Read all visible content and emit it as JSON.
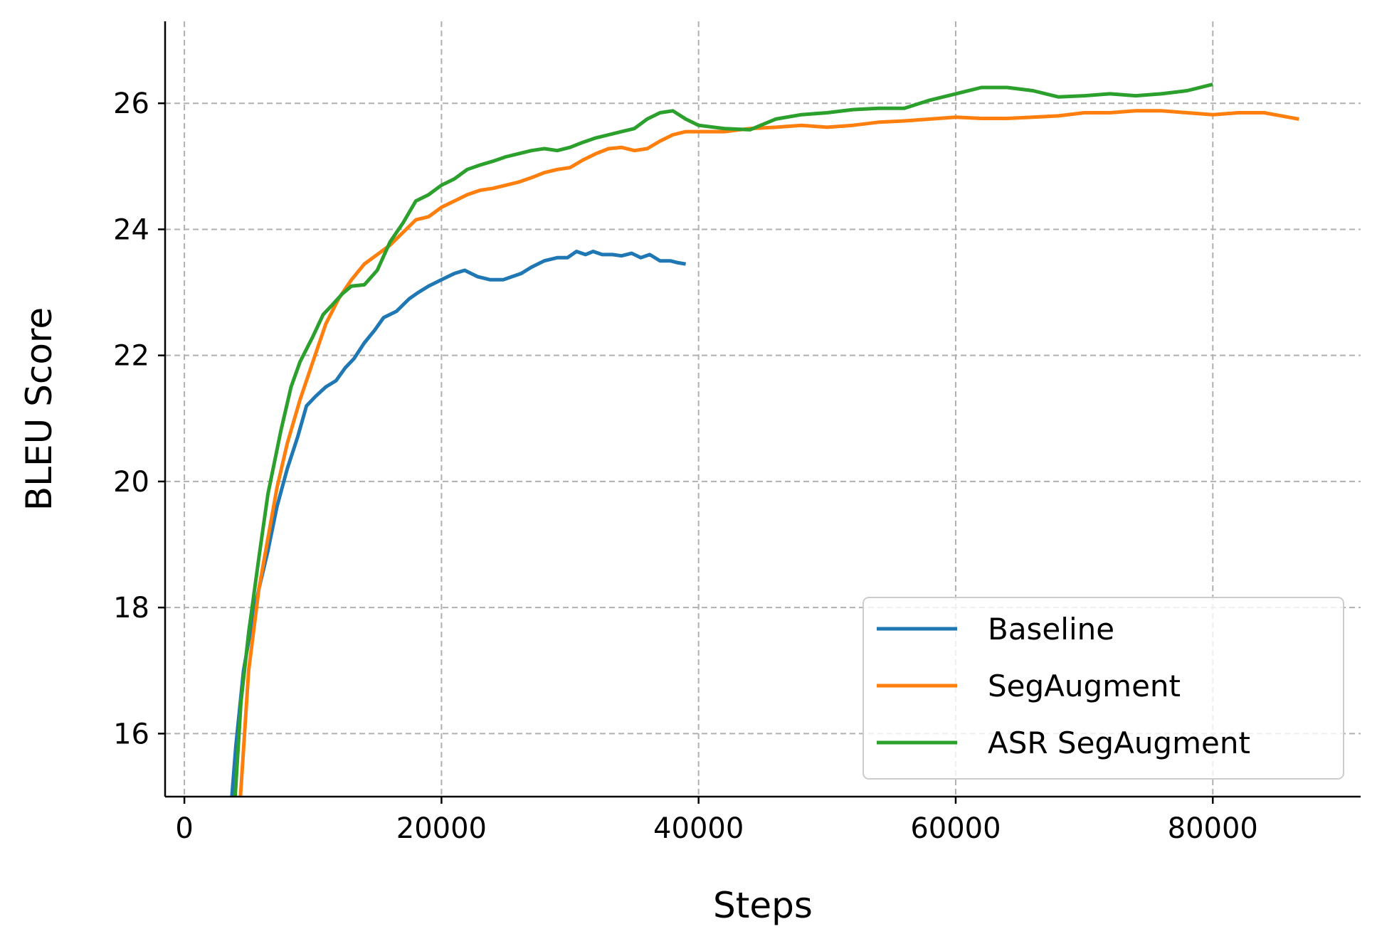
{
  "chart_data": {
    "type": "line",
    "title": "",
    "xlabel": "Steps",
    "ylabel": "BLEU Score",
    "xlim": [
      -1500,
      91500
    ],
    "ylim": [
      15,
      27.3
    ],
    "xticks": [
      0,
      20000,
      40000,
      60000,
      80000
    ],
    "yticks": [
      16,
      18,
      20,
      22,
      24,
      26
    ],
    "grid": true,
    "legend": "lower-right",
    "series": [
      {
        "name": "Baseline",
        "color": "#1f77b4",
        "x": [
          3500,
          4000,
          4600,
          5200,
          5800,
          6500,
          7200,
          8000,
          8800,
          9500,
          10200,
          11000,
          11800,
          12500,
          13200,
          14000,
          14800,
          15500,
          16500,
          17500,
          18200,
          19000,
          20000,
          21000,
          21800,
          22800,
          23800,
          24800,
          25500,
          26200,
          27000,
          28000,
          29000,
          29800,
          30500,
          31200,
          31800,
          32500,
          33300,
          34000,
          34800,
          35500,
          36200,
          37000,
          37800,
          38400,
          39000
        ],
        "y": [
          14.5,
          15.8,
          17.0,
          17.7,
          18.3,
          18.9,
          19.6,
          20.2,
          20.7,
          21.2,
          21.35,
          21.5,
          21.6,
          21.8,
          21.95,
          22.2,
          22.4,
          22.6,
          22.7,
          22.9,
          23.0,
          23.1,
          23.2,
          23.3,
          23.35,
          23.25,
          23.2,
          23.2,
          23.25,
          23.3,
          23.4,
          23.5,
          23.55,
          23.55,
          23.65,
          23.6,
          23.65,
          23.6,
          23.6,
          23.58,
          23.62,
          23.55,
          23.6,
          23.5,
          23.5,
          23.47,
          23.45
        ]
      },
      {
        "name": "SegAugment",
        "color": "#ff7f0e",
        "x": [
          4200,
          5000,
          5800,
          6500,
          7200,
          8000,
          9000,
          10000,
          11000,
          12000,
          13000,
          14000,
          15000,
          16000,
          17000,
          18000,
          19000,
          20000,
          21000,
          22000,
          23000,
          24000,
          25000,
          26000,
          27000,
          28000,
          29000,
          30000,
          31000,
          32000,
          33000,
          34000,
          35000,
          36000,
          37000,
          38000,
          39000,
          40000,
          42000,
          44000,
          46000,
          48000,
          50000,
          52000,
          54000,
          56000,
          58000,
          60000,
          62000,
          64000,
          66000,
          68000,
          70000,
          72000,
          74000,
          76000,
          78000,
          80000,
          82000,
          84000,
          86700
        ],
        "y": [
          14.5,
          17.0,
          18.3,
          19.1,
          19.9,
          20.6,
          21.3,
          21.9,
          22.5,
          22.9,
          23.2,
          23.45,
          23.6,
          23.75,
          23.95,
          24.15,
          24.2,
          24.35,
          24.45,
          24.55,
          24.62,
          24.65,
          24.7,
          24.75,
          24.82,
          24.9,
          24.95,
          24.98,
          25.1,
          25.2,
          25.28,
          25.3,
          25.25,
          25.28,
          25.4,
          25.5,
          25.55,
          25.55,
          25.55,
          25.6,
          25.62,
          25.65,
          25.62,
          25.65,
          25.7,
          25.72,
          25.75,
          25.78,
          25.76,
          25.76,
          25.78,
          25.8,
          25.85,
          25.85,
          25.88,
          25.88,
          25.85,
          25.82,
          25.85,
          25.85,
          25.75
        ]
      },
      {
        "name": "ASR SegAugment",
        "color": "#2ca02c",
        "x": [
          3800,
          4400,
          5000,
          5800,
          6500,
          7500,
          8300,
          9000,
          10000,
          10800,
          11500,
          12300,
          13000,
          14000,
          15000,
          16000,
          17000,
          18000,
          19000,
          20000,
          21000,
          22000,
          23000,
          24000,
          25000,
          26000,
          27000,
          28000,
          29000,
          30000,
          31000,
          32000,
          33000,
          34000,
          35000,
          36000,
          37000,
          38000,
          39000,
          40000,
          42000,
          44000,
          46000,
          48000,
          50000,
          52000,
          54000,
          56000,
          58000,
          60000,
          62000,
          64000,
          66000,
          68000,
          70000,
          72000,
          74000,
          76000,
          78000,
          80000
        ],
        "y": [
          14.5,
          16.5,
          17.6,
          18.8,
          19.8,
          20.8,
          21.5,
          21.9,
          22.3,
          22.65,
          22.8,
          22.98,
          23.1,
          23.12,
          23.35,
          23.8,
          24.1,
          24.45,
          24.55,
          24.7,
          24.8,
          24.95,
          25.02,
          25.08,
          25.15,
          25.2,
          25.25,
          25.28,
          25.25,
          25.3,
          25.38,
          25.45,
          25.5,
          25.55,
          25.6,
          25.75,
          25.85,
          25.88,
          25.75,
          25.65,
          25.6,
          25.58,
          25.75,
          25.82,
          25.85,
          25.9,
          25.92,
          25.92,
          26.05,
          26.15,
          26.25,
          26.25,
          26.2,
          26.1,
          26.12,
          26.15,
          26.12,
          26.15,
          26.2,
          26.3
        ]
      }
    ]
  }
}
